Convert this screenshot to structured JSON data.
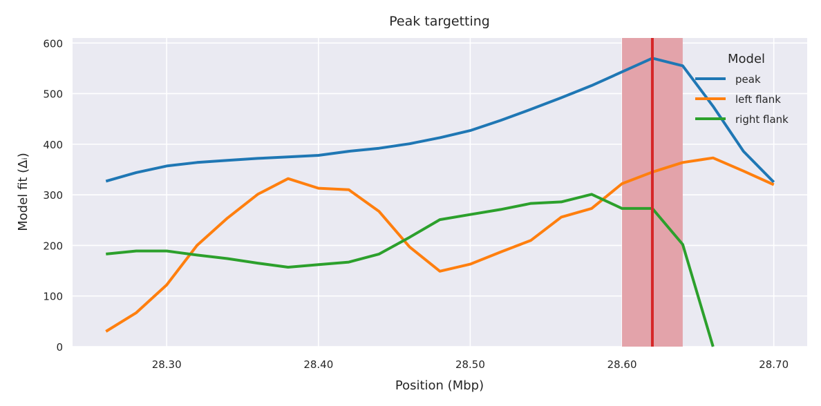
{
  "colors": {
    "plot_bg": "#eaeaf2",
    "grid": "#ffffff",
    "highlight_band": "#e3a3aa",
    "highlight_line": "#d62728"
  },
  "chart_data": {
    "type": "line",
    "title": "Peak targetting",
    "xlabel": "Position (Mbp)",
    "ylabel": "Model fit (Δᵢ)",
    "xlim": [
      28.238,
      28.722
    ],
    "ylim": [
      0,
      610
    ],
    "xticks": [
      28.3,
      28.4,
      28.5,
      28.6,
      28.7
    ],
    "xtick_labels": [
      "28.30",
      "28.40",
      "28.50",
      "28.60",
      "28.70"
    ],
    "yticks": [
      0,
      100,
      200,
      300,
      400,
      500,
      600
    ],
    "ytick_labels": [
      "0",
      "100",
      "200",
      "300",
      "400",
      "500",
      "600"
    ],
    "grid": true,
    "legend": {
      "title": "Model",
      "placement": "top-right"
    },
    "highlight": {
      "band": [
        28.6,
        28.64
      ],
      "line": 28.62
    },
    "x": [
      28.26,
      28.28,
      28.3,
      28.32,
      28.34,
      28.36,
      28.38,
      28.4,
      28.42,
      28.44,
      28.46,
      28.48,
      28.5,
      28.52,
      28.54,
      28.56,
      28.58,
      28.6,
      28.62,
      28.64,
      28.66,
      28.68,
      28.7
    ],
    "series": [
      {
        "name": "peak",
        "color": "#1f77b4",
        "values": [
          327,
          344,
          357,
          364,
          368,
          372,
          375,
          378,
          386,
          392,
          401,
          413,
          427,
          447,
          469,
          492,
          516,
          543,
          570,
          555,
          475,
          386,
          325
        ]
      },
      {
        "name": "left flank",
        "color": "#ff7f0e",
        "values": [
          30,
          67,
          122,
          200,
          254,
          301,
          332,
          313,
          310,
          267,
          197,
          149,
          163,
          187,
          210,
          256,
          273,
          322,
          345,
          364,
          373,
          347,
          320
        ]
      },
      {
        "name": "right flank",
        "color": "#2ca02c",
        "values": [
          183,
          189,
          189,
          181,
          174,
          165,
          157,
          162,
          167,
          183,
          216,
          251,
          261,
          271,
          283,
          286,
          301,
          273,
          273,
          202,
          0,
          null,
          null
        ]
      }
    ]
  }
}
